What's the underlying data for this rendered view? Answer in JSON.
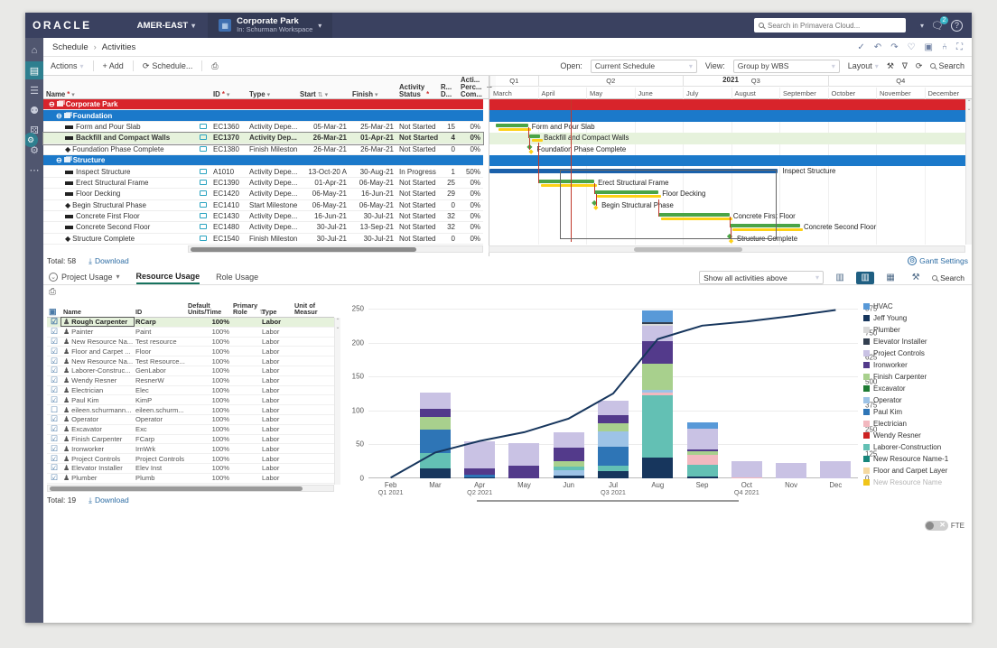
{
  "header": {
    "brand": "ORACLE",
    "org": "AMER-EAST",
    "workspace": {
      "title": "Corporate Park",
      "subtitle": "In: Schurman Workspace"
    },
    "search_placeholder": "Search in Primavera Cloud...",
    "notification_count": "2"
  },
  "breadcrumb": {
    "section": "Schedule",
    "page": "Activities"
  },
  "toolbar": {
    "actions": "Actions",
    "add": "+ Add",
    "schedule": "Schedule...",
    "open_label": "Open:",
    "open_value": "Current Schedule",
    "view_label": "View:",
    "view_value": "Group by WBS",
    "layout": "Layout",
    "search": "Search"
  },
  "activities": {
    "columns": [
      {
        "label": "Name",
        "req": true
      },
      {
        "label": ""
      },
      {
        "label": "ID",
        "req": true
      },
      {
        "label": "Type"
      },
      {
        "label": "Start",
        "sort": true
      },
      {
        "label": "Finish"
      },
      {
        "label": "Activity\nStatus",
        "req": true
      },
      {
        "label": "R...\nD..."
      },
      {
        "label": "Acti...\nPerc...\nCom..."
      }
    ],
    "rows": [
      {
        "kind": "wbs-red",
        "name": "Corporate Park"
      },
      {
        "kind": "wbs-blue",
        "name": "Foundation"
      },
      {
        "kind": "activity",
        "name": "Form and Pour Slab",
        "id": "EC1360",
        "type": "Activity Depe...",
        "start": "05-Mar-21",
        "finish": "25-Mar-21",
        "status": "Not Started",
        "rd": "15",
        "pct": "0%"
      },
      {
        "kind": "activity",
        "name": "Backfill and Compact Walls",
        "id": "EC1370",
        "type": "Activity Dep...",
        "start": "26-Mar-21",
        "finish": "01-Apr-21",
        "status": "Not Started",
        "rd": "4",
        "pct": "0%",
        "selected": true
      },
      {
        "kind": "milestone",
        "name": "Foundation Phase Complete",
        "id": "EC1380",
        "type": "Finish Milestone",
        "start": "26-Mar-21",
        "finish": "26-Mar-21",
        "status": "Not Started",
        "rd": "0",
        "pct": "0%"
      },
      {
        "kind": "wbs-blue",
        "name": "Structure"
      },
      {
        "kind": "activity",
        "name": "Inspect Structure",
        "id": "A1010",
        "type": "Activity Depe...",
        "start": "13-Oct-20 A",
        "finish": "30-Aug-21",
        "status": "In Progress",
        "rd": "1",
        "pct": "50%"
      },
      {
        "kind": "activity",
        "name": "Erect Structural Frame",
        "id": "EC1390",
        "type": "Activity Depe...",
        "start": "01-Apr-21",
        "finish": "06-May-21",
        "status": "Not Started",
        "rd": "25",
        "pct": "0%"
      },
      {
        "kind": "activity",
        "name": "Floor Decking",
        "id": "EC1420",
        "type": "Activity Depe...",
        "start": "06-May-21",
        "finish": "16-Jun-21",
        "status": "Not Started",
        "rd": "29",
        "pct": "0%"
      },
      {
        "kind": "milestone",
        "name": "Begin Structural Phase",
        "id": "EC1410",
        "type": "Start Milestone",
        "start": "06-May-21",
        "finish": "06-May-21",
        "status": "Not Started",
        "rd": "0",
        "pct": "0%"
      },
      {
        "kind": "activity",
        "name": "Concrete First Floor",
        "id": "EC1430",
        "type": "Activity Depe...",
        "start": "16-Jun-21",
        "finish": "30-Jul-21",
        "status": "Not Started",
        "rd": "32",
        "pct": "0%"
      },
      {
        "kind": "activity",
        "name": "Concrete Second Floor",
        "id": "EC1480",
        "type": "Activity Depe...",
        "start": "30-Jul-21",
        "finish": "13-Sep-21",
        "status": "Not Started",
        "rd": "32",
        "pct": "0%"
      },
      {
        "kind": "milestone",
        "name": "Structure Complete",
        "id": "EC1540",
        "type": "Finish Milestone",
        "start": "30-Jul-21",
        "finish": "30-Jul-21",
        "status": "Not Started",
        "rd": "0",
        "pct": "0%"
      }
    ],
    "total_label": "Total:",
    "total": "58",
    "download": "Download"
  },
  "gantt": {
    "year": "2021",
    "quarters": [
      {
        "label": "Q1",
        "months": [
          "March"
        ]
      },
      {
        "label": "Q2",
        "months": [
          "April",
          "May",
          "June"
        ]
      },
      {
        "label": "Q3",
        "months": [
          "July",
          "August",
          "September"
        ]
      },
      {
        "label": "Q4",
        "months": [
          "October",
          "November",
          "December"
        ]
      }
    ],
    "rows": [
      {
        "kind": "wbs-red"
      },
      {
        "kind": "wbs-blue"
      },
      {
        "kind": "bar",
        "start": 0.13,
        "end": 0.8,
        "label": "Form and Pour Slab"
      },
      {
        "kind": "bar",
        "start": 0.83,
        "end": 1.05,
        "label": "Backfill and Compact Walls",
        "selected": true
      },
      {
        "kind": "milestone",
        "at": 0.83,
        "label": "Foundation Phase Complete"
      },
      {
        "kind": "wbs-blue"
      },
      {
        "kind": "bar-blue",
        "start": 0,
        "end": 5.97,
        "label": "Inspect Structure"
      },
      {
        "kind": "bar",
        "start": 1.0,
        "end": 2.17,
        "label": "Erect Structural Frame"
      },
      {
        "kind": "bar",
        "start": 2.17,
        "end": 3.5,
        "label": "Floor Decking"
      },
      {
        "kind": "milestone",
        "at": 2.17,
        "label": "Begin Structural Phase"
      },
      {
        "kind": "bar",
        "start": 3.5,
        "end": 4.97,
        "label": "Concrete First Floor"
      },
      {
        "kind": "bar",
        "start": 4.97,
        "end": 6.43,
        "label": "Concrete Second Floor"
      },
      {
        "kind": "milestone",
        "at": 4.97,
        "label": "Structure Complete"
      }
    ],
    "settings_label": "Gantt Settings"
  },
  "usage": {
    "tabs": [
      {
        "label": "Project Usage"
      },
      {
        "label": "Resource Usage",
        "active": true
      },
      {
        "label": "Role Usage"
      }
    ],
    "columns": [
      {
        "label": ""
      },
      {
        "label": "Name"
      },
      {
        "label": "ID"
      },
      {
        "label": "Default\nUnits/Time"
      },
      {
        "label": "Primary\nRole",
        "sort": true
      },
      {
        "label": "Type"
      },
      {
        "label": "Unit of\nMeasur"
      }
    ],
    "rows": [
      {
        "name": "Rough Carpenter",
        "id": "RCarp",
        "units": "100%",
        "type": "Labor",
        "checked": true,
        "selected": true
      },
      {
        "name": "Painter",
        "id": "Paint",
        "units": "100%",
        "type": "Labor",
        "checked": true
      },
      {
        "name": "New Resource Na...",
        "id": "Test resource",
        "units": "100%",
        "type": "Labor",
        "checked": true
      },
      {
        "name": "Floor and Carpet ...",
        "id": "Floor",
        "units": "100%",
        "type": "Labor",
        "checked": true
      },
      {
        "name": "New Resource Na...",
        "id": "Test Resource...",
        "units": "100%",
        "type": "Labor",
        "checked": true
      },
      {
        "name": "Laborer-Construc...",
        "id": "GenLabor",
        "units": "100%",
        "type": "Labor",
        "checked": true
      },
      {
        "name": "Wendy Resner",
        "id": "ResnerW",
        "units": "100%",
        "type": "Labor",
        "checked": true
      },
      {
        "name": "Electrician",
        "id": "Elec",
        "units": "100%",
        "type": "Labor",
        "checked": true
      },
      {
        "name": "Paul Kim",
        "id": "KimP",
        "units": "100%",
        "type": "Labor",
        "checked": true
      },
      {
        "name": "eileen.schurmann...",
        "id": "eileen.schurm...",
        "units": "100%",
        "type": "Labor",
        "checked": false
      },
      {
        "name": "Operator",
        "id": "Operator",
        "units": "100%",
        "type": "Labor",
        "checked": true
      },
      {
        "name": "Excavator",
        "id": "Exc",
        "units": "100%",
        "type": "Labor",
        "checked": true
      },
      {
        "name": "Finish Carpenter",
        "id": "FCarp",
        "units": "100%",
        "type": "Labor",
        "checked": true
      },
      {
        "name": "Ironworker",
        "id": "IrnWrk",
        "units": "100%",
        "type": "Labor",
        "checked": true
      },
      {
        "name": "Project Controls",
        "id": "Project Controls",
        "units": "100%",
        "type": "Labor",
        "checked": true
      },
      {
        "name": "Elevator Installer",
        "id": "Elev Inst",
        "units": "100%",
        "type": "Labor",
        "checked": true
      },
      {
        "name": "Plumber",
        "id": "Plumb",
        "units": "100%",
        "type": "Labor",
        "checked": true
      }
    ],
    "total_label": "Total:",
    "total": "19",
    "download": "Download",
    "filter_value": "Show all activities above",
    "search": "Search",
    "fte_label": "FTE"
  },
  "chart_data": {
    "type": "bar",
    "title": "Resource Usage stacked histogram with cumulative line",
    "categories": [
      "Feb",
      "Mar",
      "Apr",
      "May",
      "Jun",
      "Jul",
      "Aug",
      "Sep",
      "Oct",
      "Nov",
      "Dec"
    ],
    "quarter_labels": [
      {
        "index": 0,
        "label": "Q1 2021"
      },
      {
        "index": 2,
        "label": "Q2 2021"
      },
      {
        "index": 5,
        "label": "Q3 2021"
      },
      {
        "index": 8,
        "label": "Q4 2021"
      }
    ],
    "left_axis": {
      "label": "",
      "min": 0,
      "max": 250,
      "ticks": [
        0,
        50,
        100,
        150,
        200,
        250
      ]
    },
    "right_axis": {
      "label": "FTE",
      "min": 0,
      "max": 875,
      "ticks": [
        0,
        125,
        250,
        375,
        500,
        625,
        750,
        875
      ]
    },
    "grid": true,
    "legend_position": "right",
    "stacks": [
      {
        "month": "Feb",
        "segments": []
      },
      {
        "month": "Mar",
        "segments": [
          [
            "Jeff Young",
            15
          ],
          [
            "Laborer-Construction",
            22
          ],
          [
            "Paul Kim",
            35
          ],
          [
            "Finish Carpenter",
            18
          ],
          [
            "Ironworker",
            13
          ],
          [
            "Project Controls",
            24
          ]
        ]
      },
      {
        "month": "Apr",
        "segments": [
          [
            "Jeff Young",
            2
          ],
          [
            "Paul Kim",
            3
          ],
          [
            "Ironworker",
            10
          ],
          [
            "Project Controls",
            40
          ]
        ]
      },
      {
        "month": "May",
        "segments": [
          [
            "Ironworker",
            19
          ],
          [
            "Project Controls",
            33
          ]
        ]
      },
      {
        "month": "Jun",
        "segments": [
          [
            "Jeff Young",
            4
          ],
          [
            "Operator",
            8
          ],
          [
            "Laborer-Construction",
            5
          ],
          [
            "Finish Carpenter",
            8
          ],
          [
            "Ironworker",
            20
          ],
          [
            "Project Controls",
            23
          ]
        ]
      },
      {
        "month": "Jul",
        "segments": [
          [
            "Jeff Young",
            11
          ],
          [
            "Laborer-Construction",
            8
          ],
          [
            "Paul Kim",
            28
          ],
          [
            "Operator",
            22
          ],
          [
            "Finish Carpenter",
            12
          ],
          [
            "Ironworker",
            12
          ],
          [
            "Project Controls",
            22
          ]
        ]
      },
      {
        "month": "Aug",
        "segments": [
          [
            "Jeff Young",
            30
          ],
          [
            "Laborer-Construction",
            92
          ],
          [
            "Electrician",
            5
          ],
          [
            "Operator",
            4
          ],
          [
            "Finish Carpenter",
            38
          ],
          [
            "Ironworker",
            33
          ],
          [
            "Project Controls",
            23
          ],
          [
            "Plumber",
            2
          ],
          [
            "Elevator Installer",
            3
          ],
          [
            "HVAC",
            18
          ]
        ]
      },
      {
        "month": "Sep",
        "segments": [
          [
            "Jeff Young",
            3
          ],
          [
            "Laborer-Construction",
            17
          ],
          [
            "Electrician",
            15
          ],
          [
            "Finish Carpenter",
            5
          ],
          [
            "Ironworker",
            3
          ],
          [
            "Project Controls",
            30
          ],
          [
            "HVAC",
            10
          ]
        ]
      },
      {
        "month": "Oct",
        "segments": [
          [
            "Electrician",
            1
          ],
          [
            "Project Controls",
            24
          ]
        ]
      },
      {
        "month": "Nov",
        "segments": [
          [
            "Project Controls",
            23
          ]
        ]
      },
      {
        "month": "Dec",
        "segments": [
          [
            "Project Controls",
            25
          ]
        ]
      }
    ],
    "line": {
      "name": "Cumulative",
      "color": "#17365d",
      "values": [
        1,
        38,
        55,
        68,
        88,
        125,
        205,
        225,
        231,
        239,
        248
      ]
    },
    "legend": [
      {
        "name": "HVAC",
        "color": "#5899d8"
      },
      {
        "name": "Jeff Young",
        "color": "#17365d"
      },
      {
        "name": "Plumber",
        "color": "#d9d9d9"
      },
      {
        "name": "Elevator Installer",
        "color": "#333f50"
      },
      {
        "name": "Project Controls",
        "color": "#c9c2e4"
      },
      {
        "name": "Ironworker",
        "color": "#533a8b"
      },
      {
        "name": "Finish Carpenter",
        "color": "#a8d08d"
      },
      {
        "name": "Excavator",
        "color": "#1e7b34"
      },
      {
        "name": "Operator",
        "color": "#9dc3e6"
      },
      {
        "name": "Paul Kim",
        "color": "#2e75b6"
      },
      {
        "name": "Electrician",
        "color": "#f2b8bf"
      },
      {
        "name": "Wendy Resner",
        "color": "#cc2222"
      },
      {
        "name": "Laborer-Construction",
        "color": "#63c0b4"
      },
      {
        "name": "New Resource Name-1",
        "color": "#17867b"
      },
      {
        "name": "Floor and Carpet Layer",
        "color": "#f5d9a0"
      },
      {
        "name": "New Resource Name",
        "color": "#f0c419",
        "muted": true
      }
    ]
  }
}
